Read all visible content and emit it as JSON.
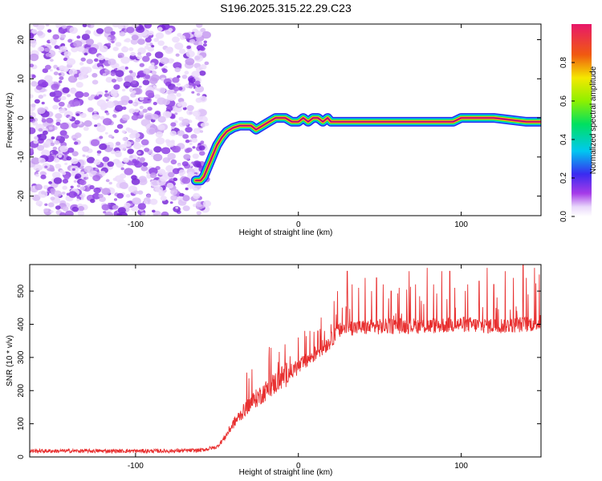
{
  "title": "S196.2025.315.22.29.C23",
  "chart_data": [
    {
      "type": "heatmap",
      "name": "spectrogram",
      "xlabel": "Height of straight line (km)",
      "ylabel": "Frequency (Hz)",
      "xlim": [
        -165,
        149
      ],
      "ylim": [
        -25,
        24
      ],
      "xticks": [
        -100,
        0,
        100
      ],
      "yticks": [
        -20,
        -10,
        0,
        10,
        20
      ],
      "noise_region_x": [
        -165,
        -56
      ],
      "ridge": {
        "x": [
          -63,
          -60,
          -58,
          -56,
          -53,
          -50,
          -47,
          -44,
          -40,
          -36,
          -32,
          -29,
          -26,
          -22,
          -18,
          -14,
          -11,
          -8,
          -4,
          0,
          3,
          6,
          9,
          12,
          15,
          18,
          20,
          30,
          50,
          75,
          95,
          100,
          120,
          140,
          149
        ],
        "freq": [
          -16,
          -16,
          -15,
          -13,
          -10,
          -7,
          -5,
          -3.5,
          -2.5,
          -2,
          -2,
          -2,
          -3,
          -2,
          -1,
          0,
          0,
          0,
          -1,
          -1,
          0,
          -1,
          0,
          0,
          -1,
          0,
          -1,
          -1,
          -1,
          -1,
          -1,
          0,
          0,
          -1,
          -1
        ]
      },
      "colorbar": {
        "label": "Normalized spectral amplitude",
        "range": [
          0,
          1
        ],
        "ticks": [
          0.0,
          0.2,
          0.4,
          0.6,
          0.8
        ],
        "tick_labels": [
          "0.0",
          "0.2",
          "0.4",
          "0.6",
          "0.8"
        ]
      }
    },
    {
      "type": "line",
      "name": "snr",
      "xlabel": "Height of straight line (km)",
      "ylabel": "SNR (10 * v/v)",
      "xlim": [
        -165,
        149
      ],
      "ylim": [
        0,
        580
      ],
      "xticks": [
        -100,
        0,
        100
      ],
      "yticks": [
        0,
        100,
        200,
        300,
        400,
        500
      ],
      "color": "#e83030",
      "baseline": {
        "x": [
          -165,
          -120,
          -80,
          -60,
          -50,
          -45,
          -40,
          -30,
          -20,
          -10,
          0,
          10,
          20,
          25,
          30,
          40,
          60,
          80,
          100,
          120,
          140,
          149
        ],
        "y": [
          18,
          18,
          18,
          20,
          30,
          60,
          100,
          160,
          200,
          240,
          270,
          310,
          350,
          380,
          390,
          390,
          395,
          395,
          400,
          395,
          400,
          405
        ]
      },
      "spikes": {
        "x": [
          0,
          4,
          7,
          12,
          16,
          20,
          22,
          24,
          27,
          30,
          33,
          37,
          41,
          45,
          48,
          52,
          57,
          62,
          68,
          72,
          79,
          83,
          88,
          93,
          96,
          104,
          111,
          116,
          120,
          127,
          132,
          138,
          140,
          145,
          148
        ],
        "y": [
          360,
          380,
          380,
          380,
          380,
          400,
          470,
          500,
          450,
          560,
          520,
          510,
          540,
          500,
          540,
          520,
          500,
          510,
          560,
          520,
          570,
          520,
          560,
          560,
          510,
          520,
          530,
          570,
          520,
          560,
          540,
          580,
          540,
          570,
          550
        ]
      }
    }
  ]
}
